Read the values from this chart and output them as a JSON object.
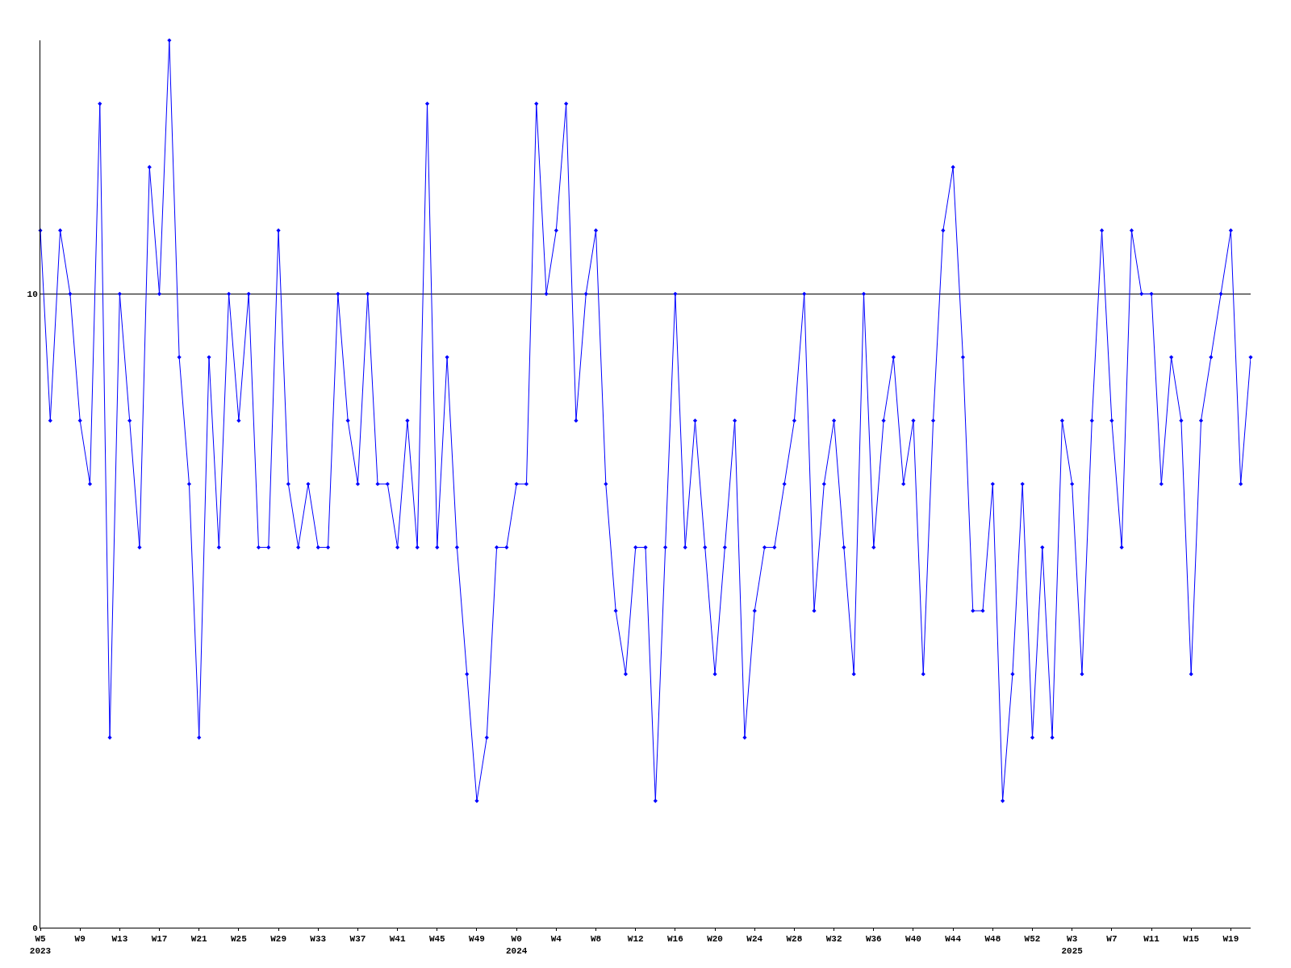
{
  "chart_data": {
    "type": "line",
    "categories": [
      "W5\n2023",
      null,
      null,
      null,
      "W9",
      null,
      null,
      null,
      "W13",
      null,
      null,
      null,
      "W17",
      null,
      null,
      null,
      "W21",
      null,
      null,
      null,
      "W25",
      null,
      null,
      null,
      "W29",
      null,
      null,
      null,
      "W33",
      null,
      null,
      null,
      "W37",
      null,
      null,
      null,
      "W41",
      null,
      null,
      null,
      "W45",
      null,
      null,
      null,
      "W49",
      null,
      null,
      null,
      "W0\n2024",
      null,
      null,
      null,
      "W4",
      null,
      null,
      null,
      "W8",
      null,
      null,
      null,
      "W12",
      null,
      null,
      null,
      "W16",
      null,
      null,
      null,
      "W20",
      null,
      null,
      null,
      "W24",
      null,
      null,
      null,
      "W28",
      null,
      null,
      null,
      "W32",
      null,
      null,
      null,
      "W36",
      null,
      null,
      null,
      "W40",
      null,
      null,
      null,
      "W44",
      null,
      null,
      null,
      "W48",
      null,
      null,
      null,
      "W52",
      null,
      null,
      null,
      "W3\n2025",
      null,
      null,
      null,
      "W7",
      null,
      null,
      null,
      "W11",
      null,
      null,
      null,
      "W15",
      null,
      null,
      null,
      "W19",
      null,
      null
    ],
    "series": [
      {
        "color": "#0000ff",
        "values": [
          11,
          8,
          11,
          10,
          8,
          7,
          13,
          3,
          10,
          8,
          6,
          12,
          10,
          14,
          9,
          7,
          3,
          9,
          6,
          10,
          8,
          10,
          6,
          6,
          11,
          7,
          6,
          7,
          6,
          6,
          10,
          8,
          7,
          10,
          7,
          7,
          6,
          8,
          6,
          13,
          6,
          9,
          6,
          4,
          2,
          3,
          6,
          6,
          7,
          7,
          13,
          10,
          11,
          13,
          8,
          10,
          11,
          7,
          5,
          4,
          6,
          6,
          2,
          6,
          10,
          6,
          8,
          6,
          4,
          6,
          8,
          3,
          5,
          6,
          6,
          7,
          8,
          10,
          5,
          7,
          8,
          6,
          4,
          10,
          6,
          8,
          9,
          7,
          8,
          4,
          8,
          11,
          12,
          9,
          5,
          5,
          7,
          2,
          4,
          7,
          3,
          6,
          3,
          8,
          7,
          4,
          8,
          11,
          8,
          6,
          11,
          10,
          10,
          7,
          9,
          8,
          4,
          8,
          9,
          10,
          11,
          7,
          9
        ]
      }
    ],
    "ylim": [
      0,
      14
    ],
    "yticks": [
      0,
      10
    ],
    "grid": "y",
    "marker": "diamond",
    "line_style": "solid"
  }
}
